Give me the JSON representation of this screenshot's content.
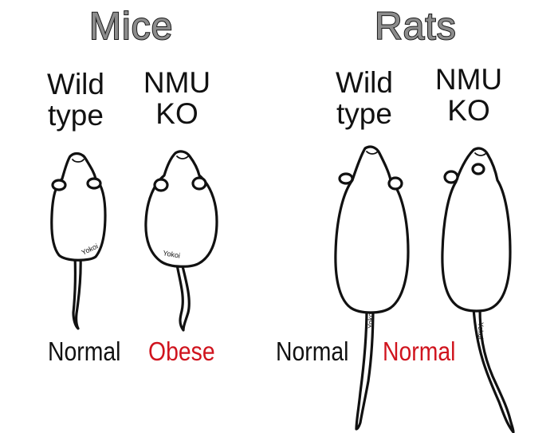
{
  "panels": {
    "mice": {
      "title": "Mice",
      "wild": {
        "line1": "Wild",
        "line2": "type",
        "phenotype": "Normal",
        "phenotype_color": "#111111"
      },
      "ko": {
        "line1": "NMU",
        "line2": "KO",
        "phenotype": "Obese",
        "phenotype_color": "#d0141e"
      }
    },
    "rats": {
      "title": "Rats",
      "wild": {
        "line1": "Wild",
        "line2": "type",
        "phenotype": "Normal",
        "phenotype_color": "#111111"
      },
      "ko": {
        "line1": "NMU",
        "line2": "KO",
        "phenotype": "Normal",
        "phenotype_color": "#d0141e"
      }
    }
  },
  "signature": "Yokoi"
}
